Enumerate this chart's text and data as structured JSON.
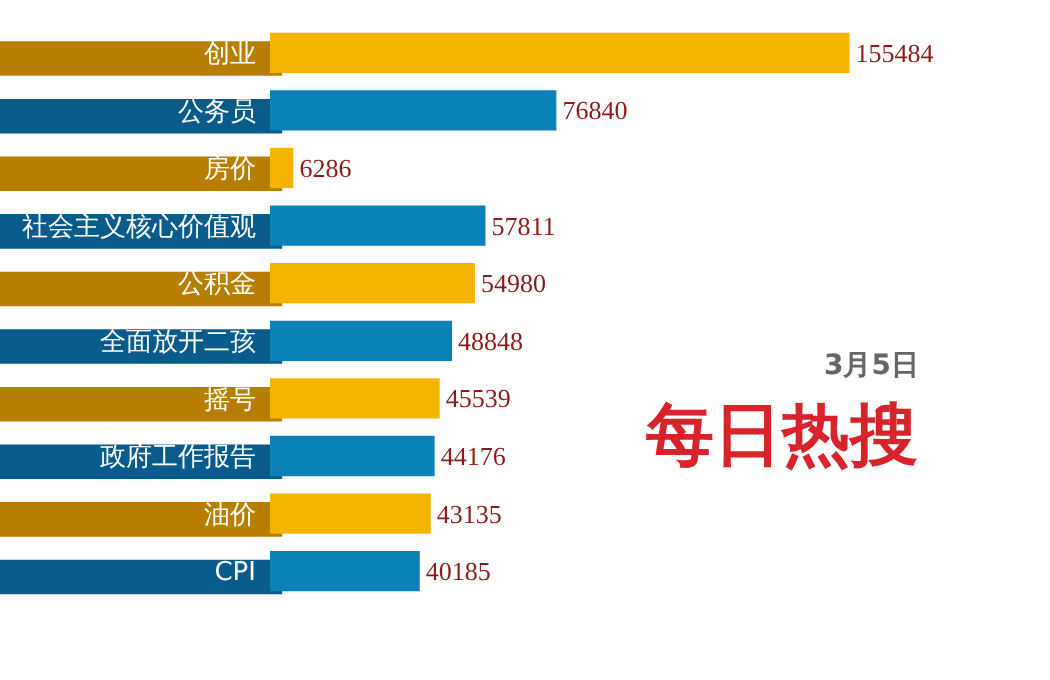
{
  "chart_data": {
    "type": "bar",
    "orientation": "horizontal",
    "title": "每日热搜",
    "subtitle": "3月5日",
    "categories": [
      "创业",
      "公务员",
      "房价",
      "社会主义核心价值观",
      "公积金",
      "全面放开二孩",
      "摇号",
      "政府工作报告",
      "油价",
      "CPI"
    ],
    "values": [
      155484,
      76840,
      6286,
      57811,
      54980,
      48848,
      45539,
      44176,
      43135,
      40185
    ],
    "data_labels": true,
    "colors": [
      "#f5b400",
      "#0a82b8",
      "#f5b400",
      "#0a82b8",
      "#f5b400",
      "#0a82b8",
      "#f5b400",
      "#0a82b8",
      "#f5b400",
      "#0a82b8"
    ],
    "tick_labels": "y"
  }
}
